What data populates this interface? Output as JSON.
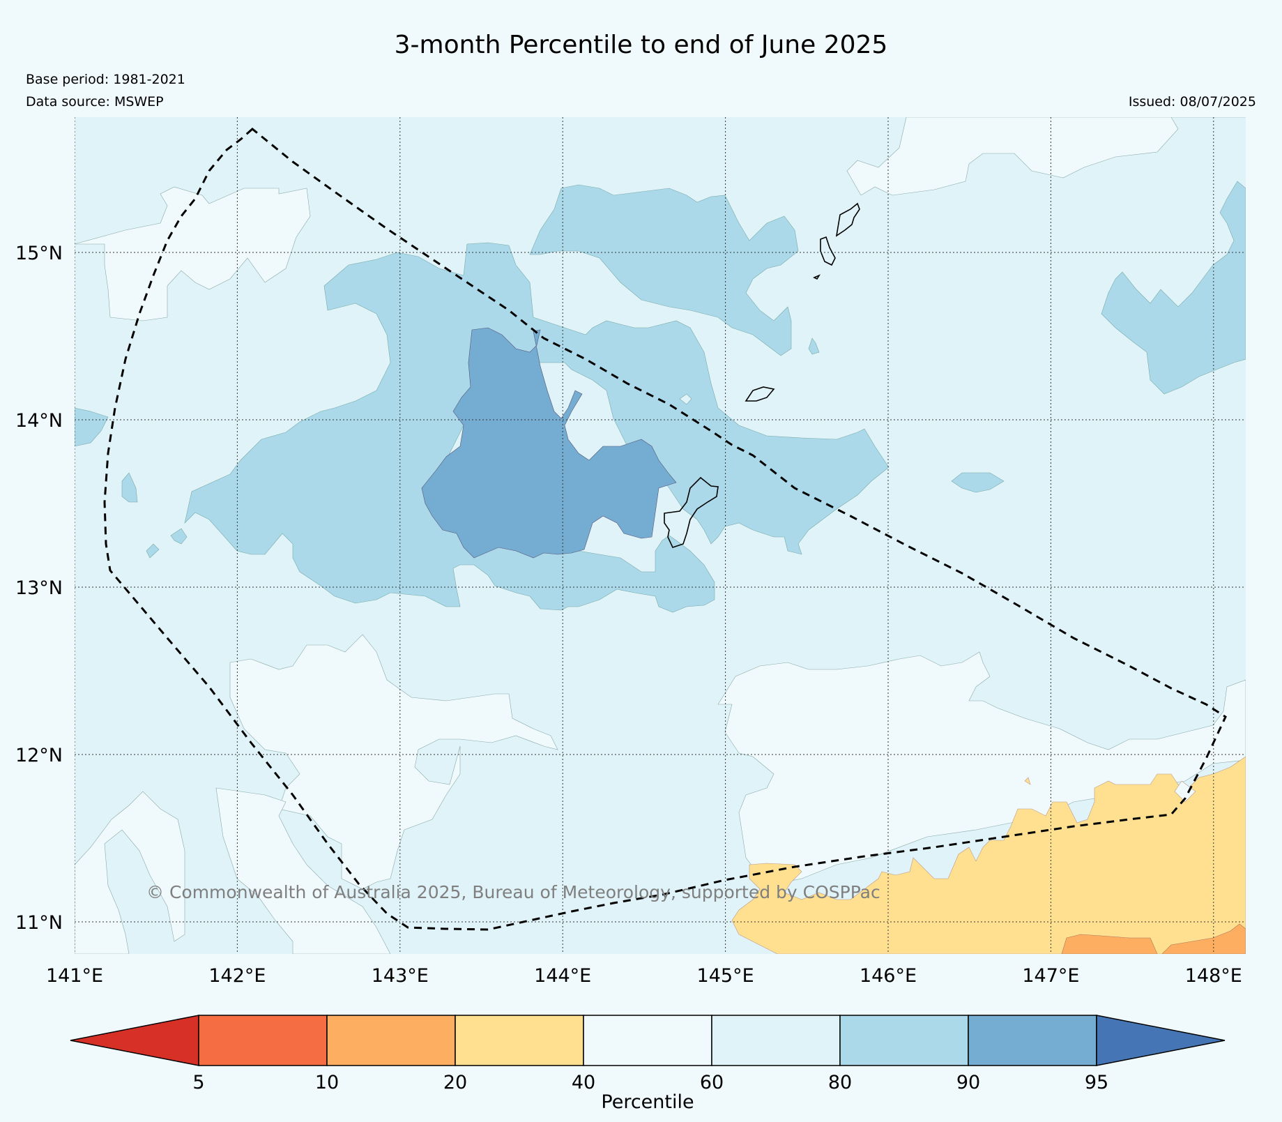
{
  "title": "3-month Percentile to end of June 2025",
  "base_period": "Base period: 1981-2021",
  "data_source": "Data source: MSWEP",
  "issued": "Issued: 08/07/2025",
  "copyright": "© Commonwealth of Australia 2025, Bureau of Meteorology, supported by COSPPac",
  "lat_labels": [
    "15°N",
    "14°N",
    "13°N",
    "12°N",
    "11°N"
  ],
  "lon_labels": [
    "141°E",
    "142°E",
    "143°E",
    "144°E",
    "145°E",
    "146°E",
    "147°E",
    "148°E"
  ],
  "colorbar": {
    "label": "Percentile",
    "ticks": [
      "5",
      "10",
      "20",
      "40",
      "60",
      "80",
      "90",
      "95"
    ],
    "colors": [
      "#d73027",
      "#f46d43",
      "#fdae61",
      "#fee090",
      "#f0f9fb",
      "#e0f3f8",
      "#abd9e9",
      "#74add1",
      "#4575b4"
    ]
  },
  "colors": {
    "background": "#f0f9fb",
    "p60_80": "#e0f3f8",
    "p80_90": "#abd9e9",
    "p90_95": "#74add1",
    "p20_40": "#fee090",
    "p10_20": "#fdae61"
  }
}
